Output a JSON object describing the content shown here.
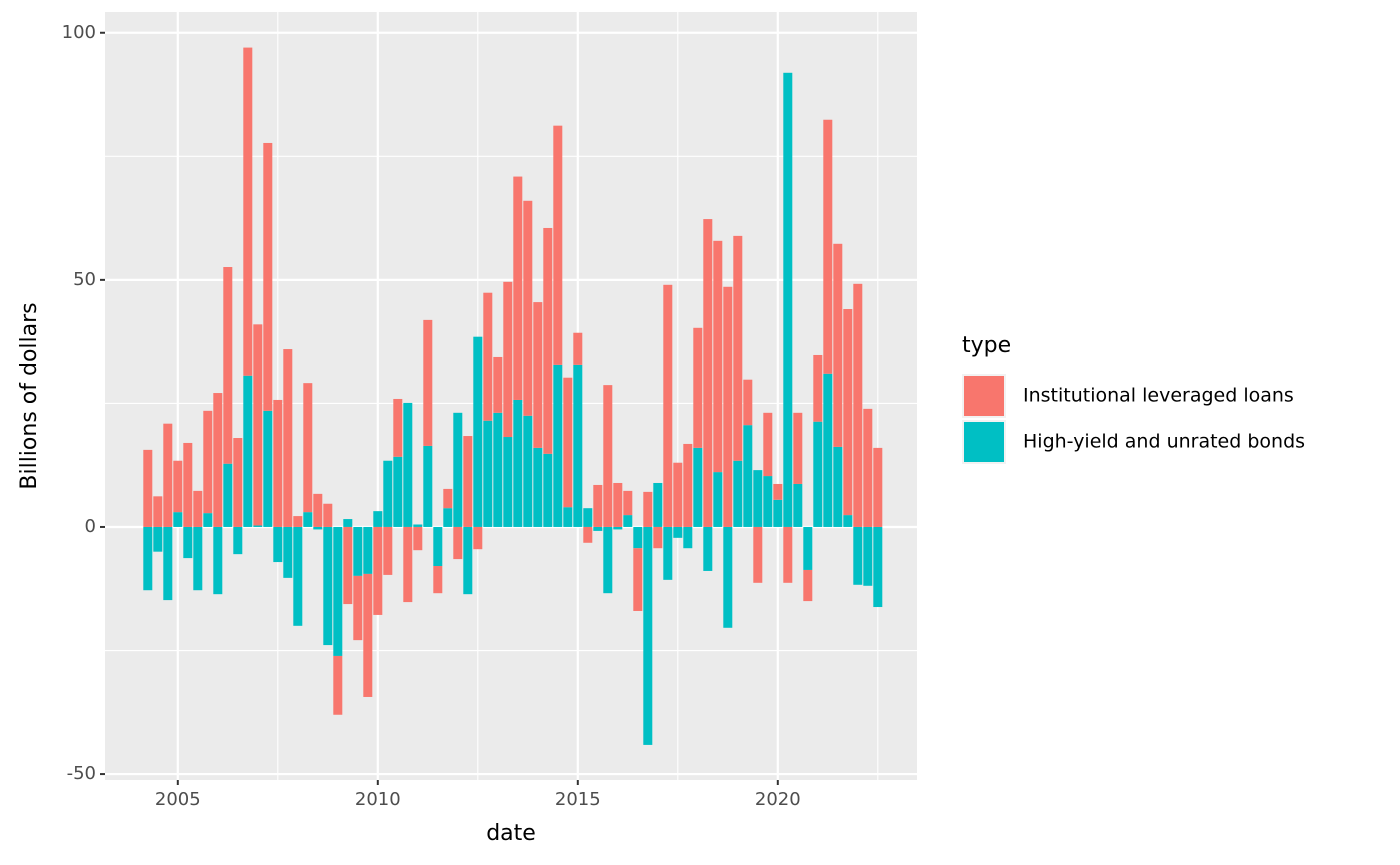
{
  "chart_data": {
    "type": "bar",
    "stacked": true,
    "x_label": "date",
    "y_label": "Billions of dollars",
    "legend_title": "type",
    "legend_position": "right",
    "x": [
      2004.25,
      2004.5,
      2004.75,
      2005,
      2005.25,
      2005.5,
      2005.75,
      2006,
      2006.25,
      2006.5,
      2006.75,
      2007,
      2007.25,
      2007.5,
      2007.75,
      2008,
      2008.25,
      2008.5,
      2008.75,
      2009,
      2009.25,
      2009.5,
      2009.75,
      2010,
      2010.25,
      2010.5,
      2010.75,
      2011,
      2011.25,
      2011.5,
      2011.75,
      2012,
      2012.25,
      2012.5,
      2012.75,
      2013,
      2013.25,
      2013.5,
      2013.75,
      2014,
      2014.25,
      2014.5,
      2014.75,
      2015,
      2015.25,
      2015.5,
      2015.75,
      2016,
      2016.25,
      2016.5,
      2016.75,
      2017,
      2017.25,
      2017.5,
      2017.75,
      2018,
      2018.25,
      2018.5,
      2018.75,
      2019,
      2019.25,
      2019.5,
      2019.75,
      2020,
      2020.25,
      2020.5,
      2020.75,
      2021,
      2021.25,
      2021.5,
      2021.75,
      2022,
      2022.25,
      2022.5
    ],
    "series": [
      {
        "name": "Institutional leveraged loans",
        "color": "#F8766D",
        "values": [
          15.6,
          6.2,
          20.9,
          10.4,
          17,
          7.3,
          20.7,
          27.1,
          39.8,
          18,
          66.4,
          40.7,
          54.2,
          25.7,
          36,
          2.2,
          26.1,
          6.7,
          4.7,
          -11.9,
          -15.6,
          -13,
          -24.9,
          -17.8,
          -9.7,
          11.7,
          -15.2,
          -4.7,
          25.5,
          -5.5,
          3.9,
          -6.5,
          18.4,
          -4.5,
          25.9,
          11.3,
          31.4,
          45.2,
          43.5,
          29.5,
          45.7,
          48.4,
          26.2,
          6.5,
          -3.2,
          8.5,
          28.7,
          8.9,
          4.9,
          -12.7,
          7.1,
          -4.3,
          49,
          13,
          16.8,
          24.3,
          62.3,
          46.8,
          48.6,
          45.5,
          9.2,
          -11.3,
          12.8,
          3.2,
          -11.3,
          14.4,
          -6.3,
          13.5,
          51.4,
          41.1,
          41.7,
          49.2,
          23.9,
          16
        ]
      },
      {
        "name": "High-yield and unrated bonds",
        "color": "#00BFC4",
        "values": [
          -12.8,
          -5,
          -14.8,
          3,
          -6.3,
          -12.8,
          2.8,
          -13.6,
          12.8,
          -5.5,
          30.6,
          0.3,
          23.5,
          -7.1,
          -10.3,
          -20,
          3,
          -0.5,
          -23.9,
          -26.1,
          1.6,
          -9.9,
          -9.5,
          3.2,
          13.4,
          14.2,
          25.1,
          0.5,
          16.4,
          -7.9,
          3.8,
          23.1,
          -13.6,
          38.5,
          21.5,
          23.1,
          18.2,
          25.7,
          22.5,
          16,
          14.8,
          32.8,
          4,
          32.8,
          3.8,
          -0.8,
          -13.4,
          -0.5,
          2.4,
          -4.3,
          -44.1,
          8.9,
          -10.7,
          -2.2,
          -4.3,
          16,
          -8.9,
          11.1,
          -20.4,
          13.4,
          20.6,
          11.5,
          10.3,
          5.5,
          91.9,
          8.7,
          -8.7,
          21.3,
          31,
          16.2,
          2.4,
          -11.7,
          -11.9,
          -16.2
        ]
      }
    ],
    "xlim": [
      2003.18,
      2023.48
    ],
    "xticks": [
      2005,
      2010,
      2015,
      2020
    ],
    "ylim": [
      -51.2,
      104.2
    ],
    "yticks": [
      -50,
      0,
      50,
      100
    ],
    "grid": true
  }
}
